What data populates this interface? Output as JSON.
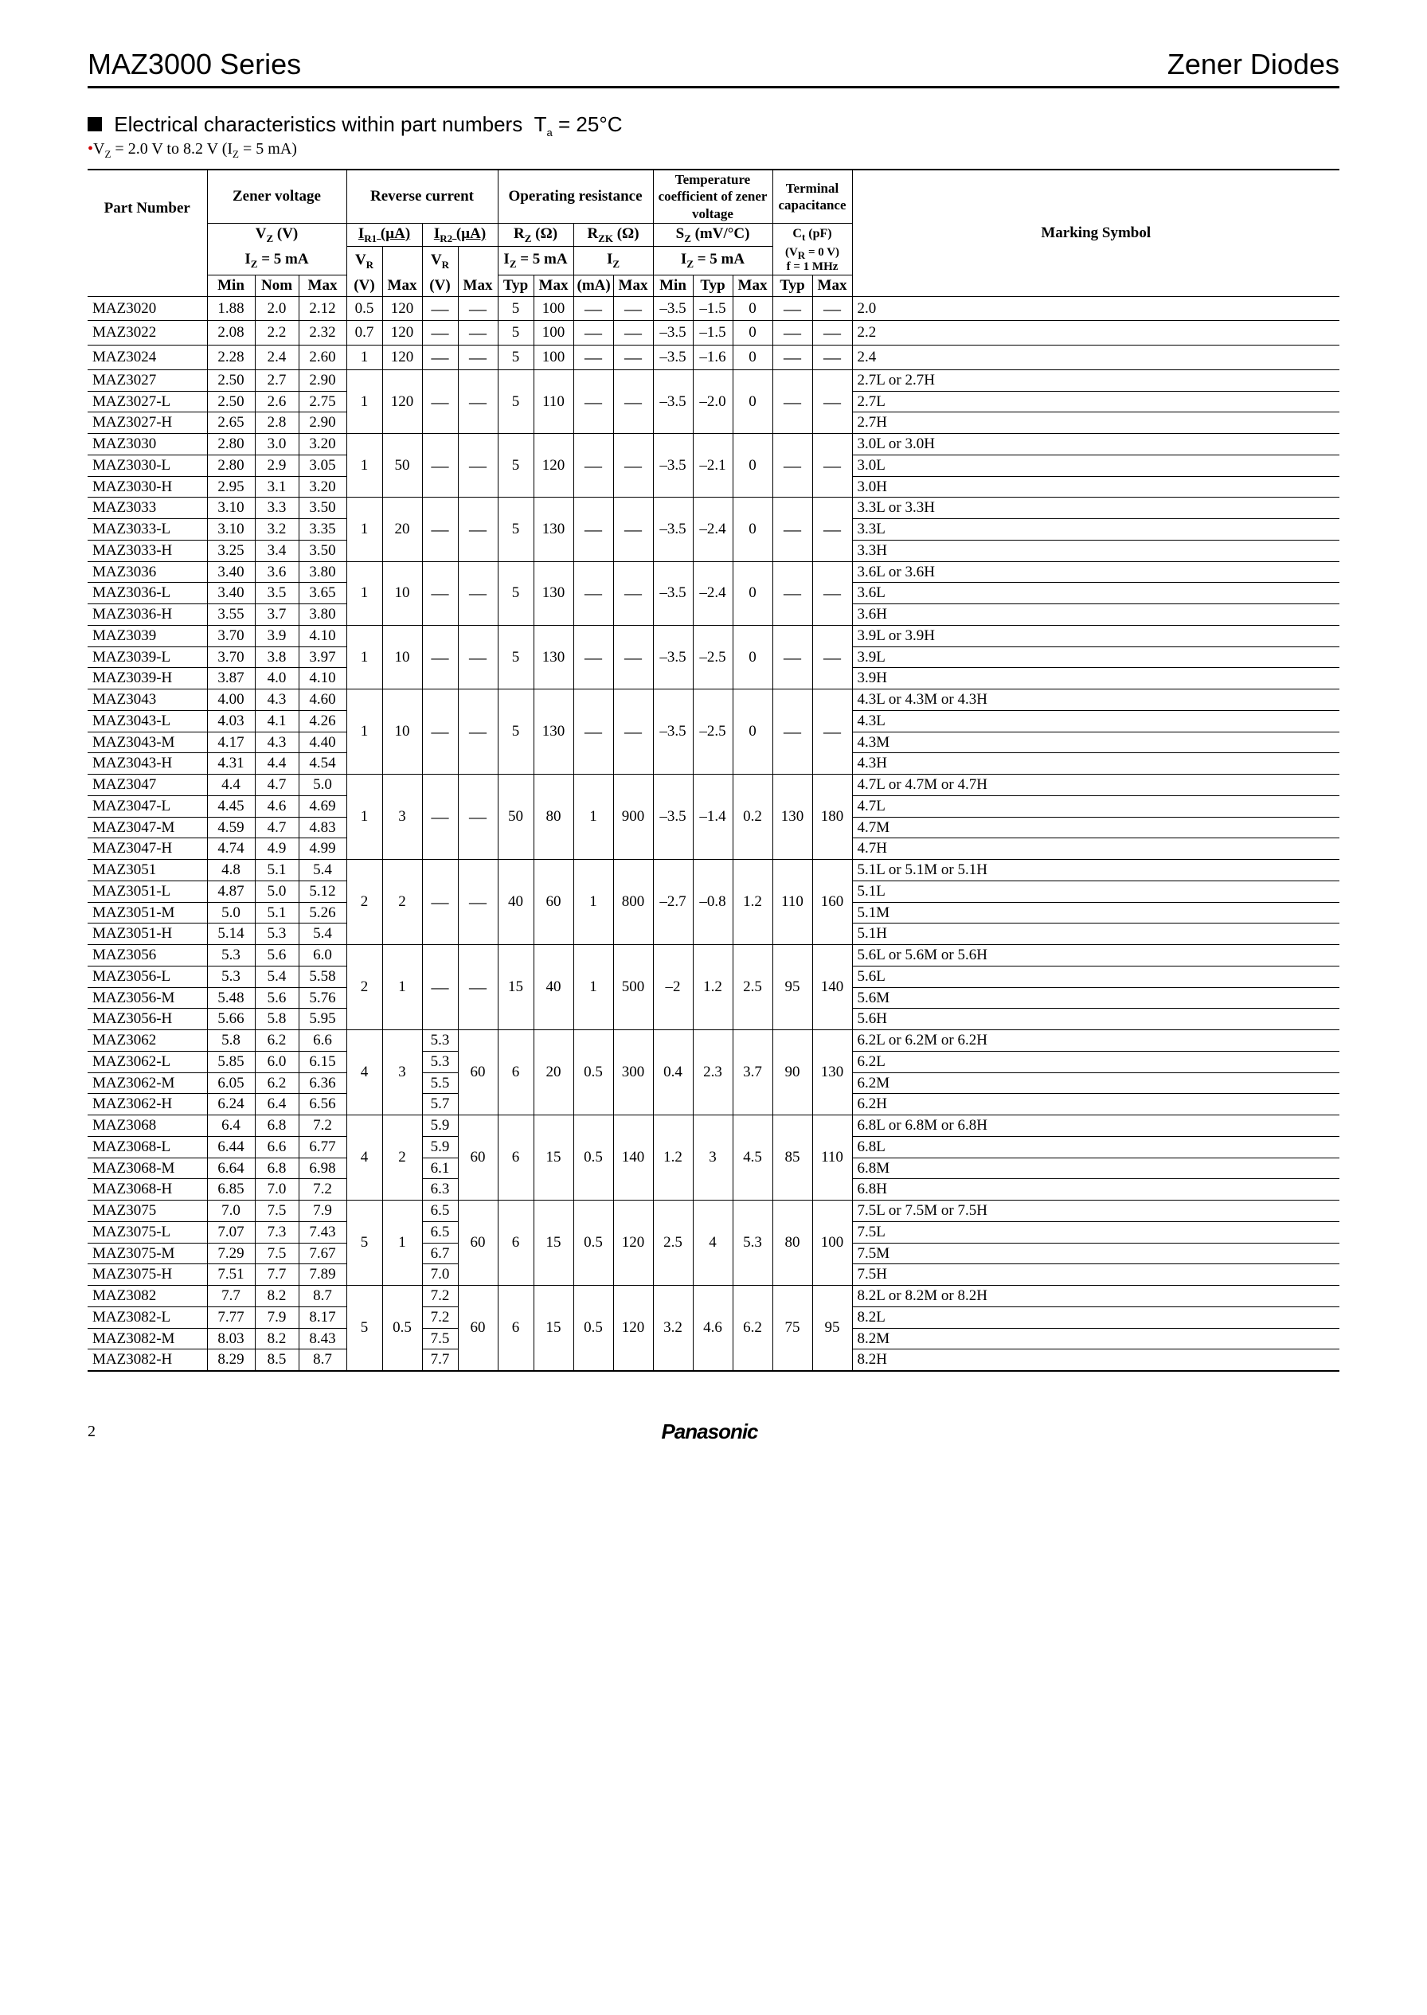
{
  "header": {
    "series": "MAZ3000 Series",
    "product": "Zener Diodes"
  },
  "section": {
    "title_prefix": "Electrical characteristics within part numbers",
    "ta": "T",
    "ta_sub": "a",
    "ta_eq": " = 25°C",
    "cond_prefix": "V",
    "cond_sub1": "Z",
    "cond_mid": " = 2.0 V to 8.2 V (I",
    "cond_sub2": "Z",
    "cond_end": " = 5 mA)"
  },
  "footer": {
    "page": "2",
    "brand": "Panasonic"
  },
  "column_headers": {
    "part_number": "Part Number",
    "zener_voltage": "Zener voltage",
    "reverse_current": "Reverse current",
    "operating_resistance": "Operating resistance",
    "temp_coeff": "Temperature coefficient of zener voltage",
    "terminal_cap": "Terminal capacitance",
    "marking_symbol": "Marking Symbol",
    "vz": "V",
    "vz_sub": "Z",
    "vz_unit": " (V)",
    "iz": "I",
    "iz_sub": "Z",
    "iz_unit": " = 5 mA",
    "ir1": "I",
    "ir1_sub": "R1",
    "ir1_unit": " (µA)",
    "ir2": "I",
    "ir2_sub": "R2",
    "ir2_unit": " (µA)",
    "vr": "V",
    "vr_sub": "R",
    "rz": "R",
    "rz_sub": "Z",
    "rz_unit": " (Ω)",
    "rzk": "R",
    "rzk_sub": "ZK",
    "rzk_unit": " (Ω)",
    "sz": "S",
    "sz_sub": "Z",
    "sz_unit": " (mV/°C)",
    "ct": "C",
    "ct_sub": "t",
    "ct_unit": " (pF)",
    "ct_cond1": "(V",
    "ct_cond1_sub": "R",
    "ct_cond1_end": " = 0 V)",
    "ct_cond2": "f = 1 MHz",
    "min": "Min",
    "nom": "Nom",
    "max": "Max",
    "typ": "Typ",
    "v_unit": "(V)",
    "mA_unit": "(mA)"
  },
  "groups": [
    {
      "rows": [
        {
          "pn": "MAZ3020",
          "vmin": "1.88",
          "vnom": "2.0",
          "vmax": "2.12",
          "vr1": "0.5",
          "ir1": "120",
          "vr2": "—",
          "ir2": "—",
          "rz_t": "5",
          "rz_m": "100",
          "rzk_i": "—",
          "rzk_m": "—",
          "sz_min": "–3.5",
          "sz_typ": "–1.5",
          "sz_max": "0",
          "ct_t": "—",
          "ct_m": "—",
          "mark": "2.0"
        },
        {
          "pn": "MAZ3022",
          "vmin": "2.08",
          "vnom": "2.2",
          "vmax": "2.32",
          "vr1": "0.7",
          "ir1": "120",
          "vr2": "—",
          "ir2": "—",
          "rz_t": "5",
          "rz_m": "100",
          "rzk_i": "—",
          "rzk_m": "—",
          "sz_min": "–3.5",
          "sz_typ": "–1.5",
          "sz_max": "0",
          "ct_t": "—",
          "ct_m": "—",
          "mark": "2.2"
        },
        {
          "pn": "MAZ3024",
          "vmin": "2.28",
          "vnom": "2.4",
          "vmax": "2.60",
          "vr1": "1",
          "ir1": "120",
          "vr2": "—",
          "ir2": "—",
          "rz_t": "5",
          "rz_m": "100",
          "rzk_i": "—",
          "rzk_m": "—",
          "sz_min": "–3.5",
          "sz_typ": "–1.6",
          "sz_max": "0",
          "ct_t": "—",
          "ct_m": "—",
          "mark": "2.4"
        }
      ]
    },
    {
      "shared": {
        "vr1": "1",
        "ir1": "120",
        "vr2": "—",
        "ir2": "—",
        "rz_t": "5",
        "rz_m": "110",
        "rzk_i": "—",
        "rzk_m": "—",
        "sz_min": "–3.5",
        "sz_typ": "–2.0",
        "sz_max": "0",
        "ct_t": "—",
        "ct_m": "—"
      },
      "rows": [
        {
          "pn": "MAZ3027",
          "vmin": "2.50",
          "vnom": "2.7",
          "vmax": "2.90",
          "mark": "2.7L or 2.7H"
        },
        {
          "pn": "MAZ3027-L",
          "vmin": "2.50",
          "vnom": "2.6",
          "vmax": "2.75",
          "mark": "2.7L"
        },
        {
          "pn": "MAZ3027-H",
          "vmin": "2.65",
          "vnom": "2.8",
          "vmax": "2.90",
          "mark": "2.7H"
        }
      ]
    },
    {
      "shared": {
        "vr1": "1",
        "ir1": "50",
        "vr2": "—",
        "ir2": "—",
        "rz_t": "5",
        "rz_m": "120",
        "rzk_i": "—",
        "rzk_m": "—",
        "sz_min": "–3.5",
        "sz_typ": "–2.1",
        "sz_max": "0",
        "ct_t": "—",
        "ct_m": "—"
      },
      "rows": [
        {
          "pn": "MAZ3030",
          "vmin": "2.80",
          "vnom": "3.0",
          "vmax": "3.20",
          "mark": "3.0L or 3.0H"
        },
        {
          "pn": "MAZ3030-L",
          "vmin": "2.80",
          "vnom": "2.9",
          "vmax": "3.05",
          "mark": "3.0L"
        },
        {
          "pn": "MAZ3030-H",
          "vmin": "2.95",
          "vnom": "3.1",
          "vmax": "3.20",
          "mark": "3.0H"
        }
      ]
    },
    {
      "shared": {
        "vr1": "1",
        "ir1": "20",
        "vr2": "—",
        "ir2": "—",
        "rz_t": "5",
        "rz_m": "130",
        "rzk_i": "—",
        "rzk_m": "—",
        "sz_min": "–3.5",
        "sz_typ": "–2.4",
        "sz_max": "0",
        "ct_t": "—",
        "ct_m": "—"
      },
      "rows": [
        {
          "pn": "MAZ3033",
          "vmin": "3.10",
          "vnom": "3.3",
          "vmax": "3.50",
          "mark": "3.3L or 3.3H"
        },
        {
          "pn": "MAZ3033-L",
          "vmin": "3.10",
          "vnom": "3.2",
          "vmax": "3.35",
          "mark": "3.3L"
        },
        {
          "pn": "MAZ3033-H",
          "vmin": "3.25",
          "vnom": "3.4",
          "vmax": "3.50",
          "mark": "3.3H"
        }
      ]
    },
    {
      "shared": {
        "vr1": "1",
        "ir1": "10",
        "vr2": "—",
        "ir2": "—",
        "rz_t": "5",
        "rz_m": "130",
        "rzk_i": "—",
        "rzk_m": "—",
        "sz_min": "–3.5",
        "sz_typ": "–2.4",
        "sz_max": "0",
        "ct_t": "—",
        "ct_m": "—"
      },
      "rows": [
        {
          "pn": "MAZ3036",
          "vmin": "3.40",
          "vnom": "3.6",
          "vmax": "3.80",
          "mark": "3.6L or 3.6H"
        },
        {
          "pn": "MAZ3036-L",
          "vmin": "3.40",
          "vnom": "3.5",
          "vmax": "3.65",
          "mark": "3.6L"
        },
        {
          "pn": "MAZ3036-H",
          "vmin": "3.55",
          "vnom": "3.7",
          "vmax": "3.80",
          "mark": "3.6H"
        }
      ]
    },
    {
      "shared": {
        "vr1": "1",
        "ir1": "10",
        "vr2": "—",
        "ir2": "—",
        "rz_t": "5",
        "rz_m": "130",
        "rzk_i": "—",
        "rzk_m": "—",
        "sz_min": "–3.5",
        "sz_typ": "–2.5",
        "sz_max": "0",
        "ct_t": "—",
        "ct_m": "—"
      },
      "rows": [
        {
          "pn": "MAZ3039",
          "vmin": "3.70",
          "vnom": "3.9",
          "vmax": "4.10",
          "mark": "3.9L or 3.9H"
        },
        {
          "pn": "MAZ3039-L",
          "vmin": "3.70",
          "vnom": "3.8",
          "vmax": "3.97",
          "mark": "3.9L"
        },
        {
          "pn": "MAZ3039-H",
          "vmin": "3.87",
          "vnom": "4.0",
          "vmax": "4.10",
          "mark": "3.9H"
        }
      ]
    },
    {
      "shared": {
        "vr1": "1",
        "ir1": "10",
        "vr2": "—",
        "ir2": "—",
        "rz_t": "5",
        "rz_m": "130",
        "rzk_i": "—",
        "rzk_m": "—",
        "sz_min": "–3.5",
        "sz_typ": "–2.5",
        "sz_max": "0",
        "ct_t": "—",
        "ct_m": "—"
      },
      "rows": [
        {
          "pn": "MAZ3043",
          "vmin": "4.00",
          "vnom": "4.3",
          "vmax": "4.60",
          "mark": "4.3L or 4.3M or 4.3H"
        },
        {
          "pn": "MAZ3043-L",
          "vmin": "4.03",
          "vnom": "4.1",
          "vmax": "4.26",
          "mark": "4.3L"
        },
        {
          "pn": "MAZ3043-M",
          "vmin": "4.17",
          "vnom": "4.3",
          "vmax": "4.40",
          "mark": "4.3M"
        },
        {
          "pn": "MAZ3043-H",
          "vmin": "4.31",
          "vnom": "4.4",
          "vmax": "4.54",
          "mark": "4.3H"
        }
      ]
    },
    {
      "shared": {
        "vr1": "1",
        "ir1": "3",
        "vr2": "—",
        "ir2": "—",
        "rz_t": "50",
        "rz_m": "80",
        "rzk_i": "1",
        "rzk_m": "900",
        "sz_min": "–3.5",
        "sz_typ": "–1.4",
        "sz_max": "0.2",
        "ct_t": "130",
        "ct_m": "180"
      },
      "rows": [
        {
          "pn": "MAZ3047",
          "vmin": "4.4",
          "vnom": "4.7",
          "vmax": "5.0",
          "mark": "4.7L or 4.7M or 4.7H"
        },
        {
          "pn": "MAZ3047-L",
          "vmin": "4.45",
          "vnom": "4.6",
          "vmax": "4.69",
          "mark": "4.7L"
        },
        {
          "pn": "MAZ3047-M",
          "vmin": "4.59",
          "vnom": "4.7",
          "vmax": "4.83",
          "mark": "4.7M"
        },
        {
          "pn": "MAZ3047-H",
          "vmin": "4.74",
          "vnom": "4.9",
          "vmax": "4.99",
          "mark": "4.7H"
        }
      ]
    },
    {
      "shared": {
        "vr1": "2",
        "ir1": "2",
        "vr2": "—",
        "ir2": "—",
        "rz_t": "40",
        "rz_m": "60",
        "rzk_i": "1",
        "rzk_m": "800",
        "sz_min": "–2.7",
        "sz_typ": "–0.8",
        "sz_max": "1.2",
        "ct_t": "110",
        "ct_m": "160"
      },
      "rows": [
        {
          "pn": "MAZ3051",
          "vmin": "4.8",
          "vnom": "5.1",
          "vmax": "5.4",
          "mark": "5.1L or 5.1M or 5.1H"
        },
        {
          "pn": "MAZ3051-L",
          "vmin": "4.87",
          "vnom": "5.0",
          "vmax": "5.12",
          "mark": "5.1L"
        },
        {
          "pn": "MAZ3051-M",
          "vmin": "5.0",
          "vnom": "5.1",
          "vmax": "5.26",
          "mark": "5.1M"
        },
        {
          "pn": "MAZ3051-H",
          "vmin": "5.14",
          "vnom": "5.3",
          "vmax": "5.4",
          "mark": "5.1H"
        }
      ]
    },
    {
      "shared": {
        "vr1": "2",
        "ir1": "1",
        "vr2": "—",
        "ir2": "—",
        "rz_t": "15",
        "rz_m": "40",
        "rzk_i": "1",
        "rzk_m": "500",
        "sz_min": "–2",
        "sz_typ": "1.2",
        "sz_max": "2.5",
        "ct_t": "95",
        "ct_m": "140"
      },
      "rows": [
        {
          "pn": "MAZ3056",
          "vmin": "5.3",
          "vnom": "5.6",
          "vmax": "6.0",
          "mark": "5.6L or 5.6M or 5.6H"
        },
        {
          "pn": "MAZ3056-L",
          "vmin": "5.3",
          "vnom": "5.4",
          "vmax": "5.58",
          "mark": "5.6L"
        },
        {
          "pn": "MAZ3056-M",
          "vmin": "5.48",
          "vnom": "5.6",
          "vmax": "5.76",
          "mark": "5.6M"
        },
        {
          "pn": "MAZ3056-H",
          "vmin": "5.66",
          "vnom": "5.8",
          "vmax": "5.95",
          "mark": "5.6H"
        }
      ]
    },
    {
      "shared": {
        "vr1": "4",
        "ir1": "3",
        "ir2": "60",
        "per_row_vr2": [
          "5.3",
          "5.3",
          "5.5",
          "5.7"
        ],
        "rz_t": "6",
        "rz_m": "20",
        "rzk_i": "0.5",
        "rzk_m": "300",
        "sz_min": "0.4",
        "sz_typ": "2.3",
        "sz_max": "3.7",
        "ct_t": "90",
        "ct_m": "130"
      },
      "rows": [
        {
          "pn": "MAZ3062",
          "vmin": "5.8",
          "vnom": "6.2",
          "vmax": "6.6",
          "mark": "6.2L or 6.2M or 6.2H"
        },
        {
          "pn": "MAZ3062-L",
          "vmin": "5.85",
          "vnom": "6.0",
          "vmax": "6.15",
          "mark": "6.2L"
        },
        {
          "pn": "MAZ3062-M",
          "vmin": "6.05",
          "vnom": "6.2",
          "vmax": "6.36",
          "mark": "6.2M"
        },
        {
          "pn": "MAZ3062-H",
          "vmin": "6.24",
          "vnom": "6.4",
          "vmax": "6.56",
          "mark": "6.2H"
        }
      ]
    },
    {
      "shared": {
        "vr1": "4",
        "ir1": "2",
        "ir2": "60",
        "per_row_vr2": [
          "5.9",
          "5.9",
          "6.1",
          "6.3"
        ],
        "rz_t": "6",
        "rz_m": "15",
        "rzk_i": "0.5",
        "rzk_m": "140",
        "sz_min": "1.2",
        "sz_typ": "3",
        "sz_max": "4.5",
        "ct_t": "85",
        "ct_m": "110"
      },
      "rows": [
        {
          "pn": "MAZ3068",
          "vmin": "6.4",
          "vnom": "6.8",
          "vmax": "7.2",
          "mark": "6.8L or 6.8M or 6.8H"
        },
        {
          "pn": "MAZ3068-L",
          "vmin": "6.44",
          "vnom": "6.6",
          "vmax": "6.77",
          "mark": "6.8L"
        },
        {
          "pn": "MAZ3068-M",
          "vmin": "6.64",
          "vnom": "6.8",
          "vmax": "6.98",
          "mark": "6.8M"
        },
        {
          "pn": "MAZ3068-H",
          "vmin": "6.85",
          "vnom": "7.0",
          "vmax": "7.2",
          "mark": "6.8H"
        }
      ]
    },
    {
      "shared": {
        "vr1": "5",
        "ir1": "1",
        "ir2": "60",
        "per_row_vr2": [
          "6.5",
          "6.5",
          "6.7",
          "7.0"
        ],
        "rz_t": "6",
        "rz_m": "15",
        "rzk_i": "0.5",
        "rzk_m": "120",
        "sz_min": "2.5",
        "sz_typ": "4",
        "sz_max": "5.3",
        "ct_t": "80",
        "ct_m": "100"
      },
      "rows": [
        {
          "pn": "MAZ3075",
          "vmin": "7.0",
          "vnom": "7.5",
          "vmax": "7.9",
          "mark": "7.5L or 7.5M or 7.5H"
        },
        {
          "pn": "MAZ3075-L",
          "vmin": "7.07",
          "vnom": "7.3",
          "vmax": "7.43",
          "mark": "7.5L"
        },
        {
          "pn": "MAZ3075-M",
          "vmin": "7.29",
          "vnom": "7.5",
          "vmax": "7.67",
          "mark": "7.5M"
        },
        {
          "pn": "MAZ3075-H",
          "vmin": "7.51",
          "vnom": "7.7",
          "vmax": "7.89",
          "mark": "7.5H"
        }
      ]
    },
    {
      "shared": {
        "vr1": "5",
        "ir1": "0.5",
        "ir2": "60",
        "per_row_vr2": [
          "7.2",
          "7.2",
          "7.5",
          "7.7"
        ],
        "rz_t": "6",
        "rz_m": "15",
        "rzk_i": "0.5",
        "rzk_m": "120",
        "sz_min": "3.2",
        "sz_typ": "4.6",
        "sz_max": "6.2",
        "ct_t": "75",
        "ct_m": "95"
      },
      "rows": [
        {
          "pn": "MAZ3082",
          "vmin": "7.7",
          "vnom": "8.2",
          "vmax": "8.7",
          "mark": "8.2L or 8.2M or 8.2H"
        },
        {
          "pn": "MAZ3082-L",
          "vmin": "7.77",
          "vnom": "7.9",
          "vmax": "8.17",
          "mark": "8.2L"
        },
        {
          "pn": "MAZ3082-M",
          "vmin": "8.03",
          "vnom": "8.2",
          "vmax": "8.43",
          "mark": "8.2M"
        },
        {
          "pn": "MAZ3082-H",
          "vmin": "8.29",
          "vnom": "8.5",
          "vmax": "8.7",
          "mark": "8.2H"
        }
      ]
    }
  ]
}
